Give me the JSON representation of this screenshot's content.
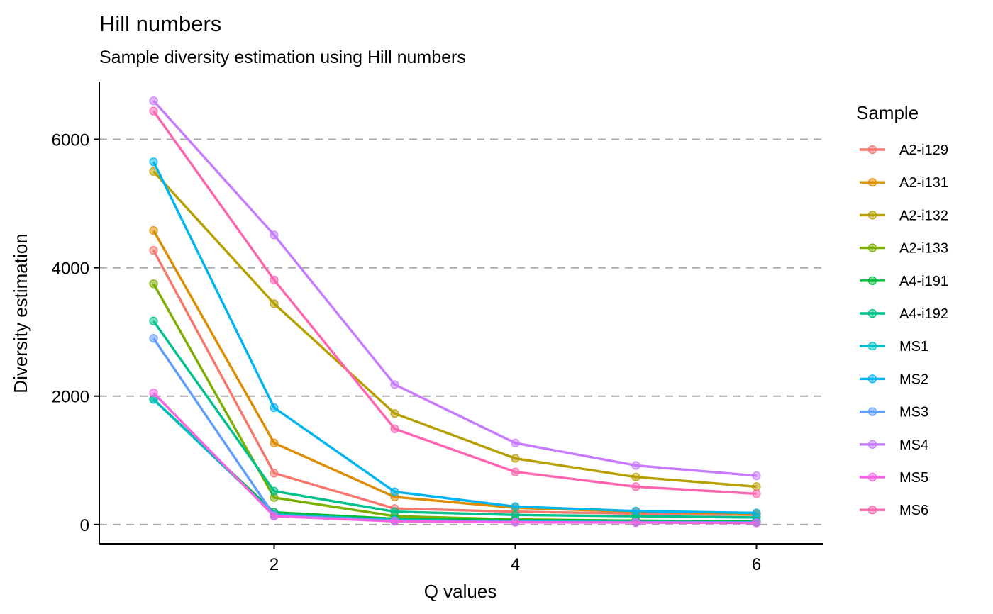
{
  "chart_data": {
    "type": "line",
    "title": "Hill numbers",
    "subtitle": "Sample diversity estimation using Hill numbers",
    "xlabel": "Q values",
    "ylabel": "Diversity estimation",
    "x": [
      1,
      2,
      3,
      4,
      5,
      6
    ],
    "xlim": [
      0.55,
      6.55
    ],
    "ylim": [
      -300,
      6900
    ],
    "xticks": [
      2,
      4,
      6
    ],
    "yticks": [
      0,
      2000,
      4000,
      6000
    ],
    "grid": "horizontal dashed major lines",
    "legend_title": "Sample",
    "legend_position": "right",
    "series": [
      {
        "name": "A2-i129",
        "color": "#F8766D",
        "values": [
          4270,
          800,
          250,
          200,
          170,
          150
        ]
      },
      {
        "name": "A2-i131",
        "color": "#DE8C00",
        "values": [
          4580,
          1270,
          430,
          260,
          200,
          170
        ]
      },
      {
        "name": "A2-i132",
        "color": "#B79F00",
        "values": [
          5500,
          3440,
          1730,
          1030,
          740,
          590
        ]
      },
      {
        "name": "A2-i133",
        "color": "#7CAE00",
        "values": [
          3750,
          420,
          130,
          80,
          60,
          50
        ]
      },
      {
        "name": "A4-i191",
        "color": "#00BA38",
        "values": [
          1950,
          190,
          90,
          70,
          60,
          50
        ]
      },
      {
        "name": "A4-i192",
        "color": "#00C08B",
        "values": [
          3170,
          520,
          200,
          150,
          130,
          110
        ]
      },
      {
        "name": "MS1",
        "color": "#00BFC4",
        "values": [
          1950,
          160,
          70,
          50,
          40,
          35
        ]
      },
      {
        "name": "MS2",
        "color": "#00B4F0",
        "values": [
          5650,
          1820,
          510,
          280,
          210,
          180
        ]
      },
      {
        "name": "MS3",
        "color": "#619CFF",
        "values": [
          2900,
          140,
          60,
          40,
          35,
          30
        ]
      },
      {
        "name": "MS4",
        "color": "#C77CFF",
        "values": [
          6600,
          4510,
          2180,
          1270,
          920,
          760
        ]
      },
      {
        "name": "MS5",
        "color": "#F564E3",
        "values": [
          2050,
          130,
          50,
          35,
          30,
          25
        ]
      },
      {
        "name": "MS6",
        "color": "#FF64B0",
        "values": [
          6440,
          3810,
          1490,
          820,
          590,
          480
        ]
      }
    ]
  }
}
